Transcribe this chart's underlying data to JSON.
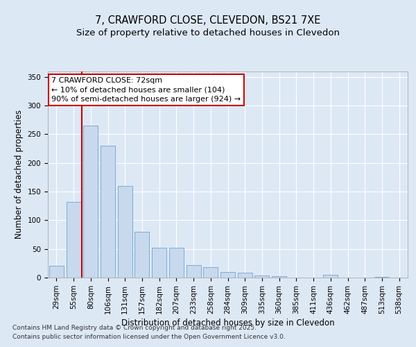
{
  "title_line1": "7, CRAWFORD CLOSE, CLEVEDON, BS21 7XE",
  "title_line2": "Size of property relative to detached houses in Clevedon",
  "xlabel": "Distribution of detached houses by size in Clevedon",
  "ylabel": "Number of detached properties",
  "categories": [
    "29sqm",
    "55sqm",
    "80sqm",
    "106sqm",
    "131sqm",
    "157sqm",
    "182sqm",
    "207sqm",
    "233sqm",
    "258sqm",
    "284sqm",
    "309sqm",
    "335sqm",
    "360sqm",
    "385sqm",
    "411sqm",
    "436sqm",
    "462sqm",
    "487sqm",
    "513sqm",
    "538sqm"
  ],
  "values": [
    20,
    132,
    265,
    230,
    160,
    80,
    52,
    52,
    22,
    18,
    10,
    8,
    4,
    3,
    0,
    0,
    5,
    0,
    0,
    1,
    0
  ],
  "bar_color": "#c8d9ee",
  "bar_edge_color": "#7aabd6",
  "vline_x_index": 1.5,
  "vline_color": "#cc0000",
  "annotation_line1": "7 CRAWFORD CLOSE: 72sqm",
  "annotation_line2": "← 10% of detached houses are smaller (104)",
  "annotation_line3": "90% of semi-detached houses are larger (924) →",
  "annotation_box_edgecolor": "#cc0000",
  "bg_color": "#dde8f5",
  "plot_bg_color": "#dde8f5",
  "ylim": [
    0,
    360
  ],
  "yticks": [
    0,
    50,
    100,
    150,
    200,
    250,
    300,
    350
  ],
  "footer_line1": "Contains HM Land Registry data © Crown copyright and database right 2025.",
  "footer_line2": "Contains public sector information licensed under the Open Government Licence v3.0.",
  "title_fontsize": 10.5,
  "subtitle_fontsize": 9.5,
  "axis_label_fontsize": 8.5,
  "tick_fontsize": 7.5,
  "annotation_fontsize": 8,
  "footer_fontsize": 6.5
}
